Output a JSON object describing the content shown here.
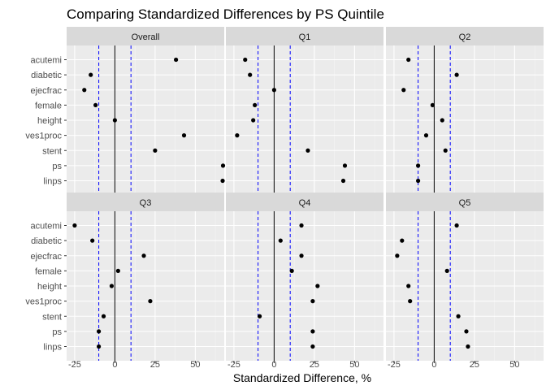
{
  "chart_data": {
    "type": "scatter",
    "title": "Comparing Standardized Differences by PS Quintile",
    "xlabel": "Standardized Difference, %",
    "ylabel": "",
    "xlim": [
      -30,
      68
    ],
    "x_ticks": [
      -25,
      0,
      25,
      50
    ],
    "x_tick_labels": [
      "-25",
      "0",
      "25",
      "50"
    ],
    "reference_lines": {
      "solid": [
        0
      ],
      "dashed": [
        -10,
        10
      ],
      "solid_color": "#000000",
      "dashed_color": "#0000ff"
    },
    "categories": [
      "acutemi",
      "diabetic",
      "ejecfrac",
      "female",
      "height",
      "ves1proc",
      "stent",
      "ps",
      "linps"
    ],
    "panels": [
      {
        "name": "Overall",
        "values": [
          38,
          -15,
          -19,
          -12,
          0,
          43,
          25,
          68,
          67
        ]
      },
      {
        "name": "Q1",
        "values": [
          -18,
          -15,
          0,
          -12,
          -13,
          -23,
          21,
          44,
          43
        ]
      },
      {
        "name": "Q2",
        "values": [
          -16,
          14,
          -19,
          -1,
          5,
          -5,
          7,
          -10,
          -10
        ]
      },
      {
        "name": "Q3",
        "values": [
          -25,
          -14,
          18,
          2,
          -2,
          22,
          -7,
          -10,
          -10
        ]
      },
      {
        "name": "Q4",
        "values": [
          17,
          4,
          17,
          11,
          27,
          24,
          -9,
          24,
          24
        ]
      },
      {
        "name": "Q5",
        "values": [
          14,
          -20,
          -23,
          8,
          -16,
          -15,
          15,
          20,
          21
        ]
      }
    ],
    "grid": true,
    "legend": "none",
    "colors": {
      "panel_background": "#ebebeb",
      "strip_background": "#d9d9d9",
      "grid_major": "#ffffff",
      "point": "#000000"
    }
  }
}
